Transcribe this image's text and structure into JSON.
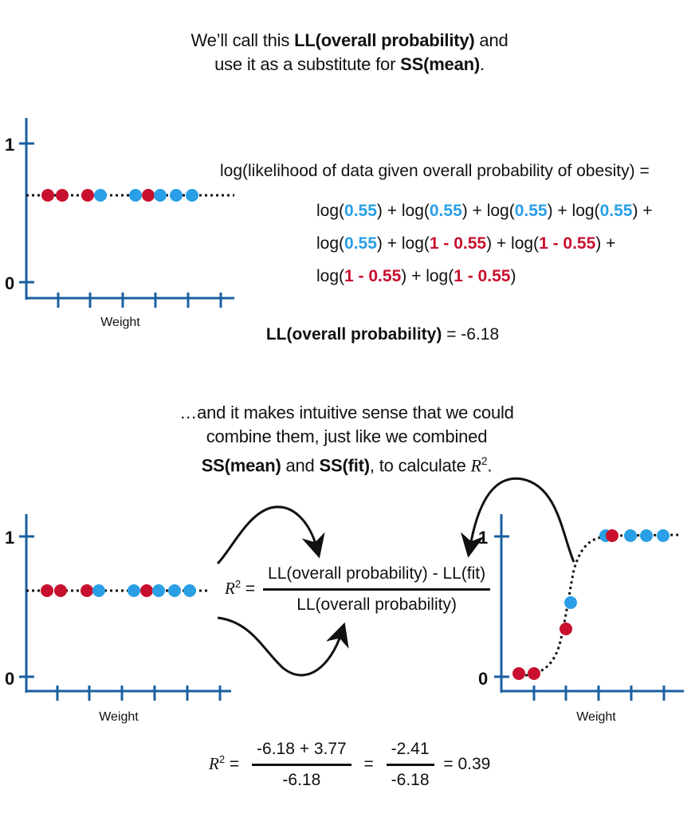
{
  "top_caption": {
    "line1_pre": "We’ll call this ",
    "line1_bold": "LL(overall probability)",
    "line1_post": " and",
    "line2_pre": "use it as a substitute for ",
    "line2_bold": "SS(mean)",
    "line2_post": "."
  },
  "plot_common": {
    "y_tick_top": "1",
    "y_tick_bottom": "0",
    "x_label": "Weight"
  },
  "log_equation": {
    "header": "log(likelihood of data given overall probability of obesity) =",
    "log": "log(",
    "close": ")",
    "plus": " + ",
    "p": "0.55",
    "one_minus_p": "1 - 0.55",
    "trailing_plus": " +"
  },
  "ll_result": {
    "label": "LL(overall probability)",
    "rest": " = -6.18"
  },
  "middle_caption": {
    "line1": "…and it makes intuitive sense that we could",
    "line2": "combine them, just like we combined",
    "line3_bold1": "SS(mean)",
    "line3_mid": " and ",
    "line3_bold2": "SS(fit)",
    "line3_post": ", to calculate ",
    "r": "R",
    "sup": "2",
    "period": "."
  },
  "r2_formula": {
    "r": "R",
    "sup": "2",
    "eq": " =",
    "numerator": "LL(overall probability) - LL(fit)",
    "denominator": "LL(overall probability)"
  },
  "r2_calc": {
    "r": "R",
    "sup": "2",
    "eq1": " =",
    "num1": "-6.18 + 3.77",
    "den1": "-6.18",
    "eq2": "=",
    "num2": "-2.41",
    "den2": "-6.18",
    "result": "= 0.39"
  },
  "colors": {
    "obese": "#2a9fe6",
    "not_obese": "#c8102e",
    "axis": "#1a5fa0"
  }
}
